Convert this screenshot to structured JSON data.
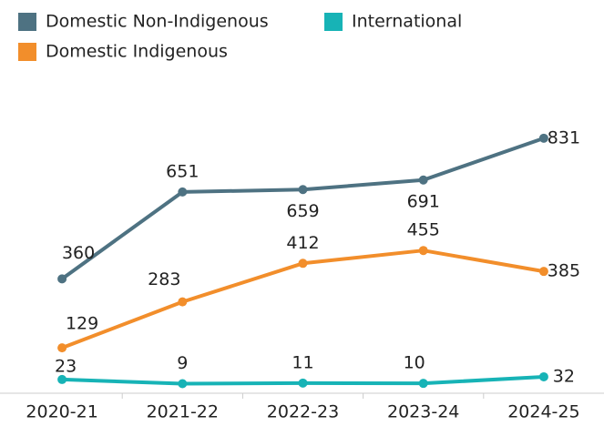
{
  "chart_data": {
    "type": "line",
    "categories": [
      "2020-21",
      "2021-22",
      "2022-23",
      "2023-24",
      "2024-25"
    ],
    "series": [
      {
        "name": "Domestic Non-Indigenous",
        "color": "#4e7282",
        "values": [
          360,
          651,
          659,
          691,
          831
        ]
      },
      {
        "name": "Domestic Indigenous",
        "color": "#f28e2b",
        "values": [
          129,
          283,
          412,
          455,
          385
        ]
      },
      {
        "name": "International",
        "color": "#17b3b6",
        "values": [
          23,
          9,
          11,
          10,
          32
        ]
      }
    ],
    "ylim": [
      -23,
      1050
    ]
  }
}
